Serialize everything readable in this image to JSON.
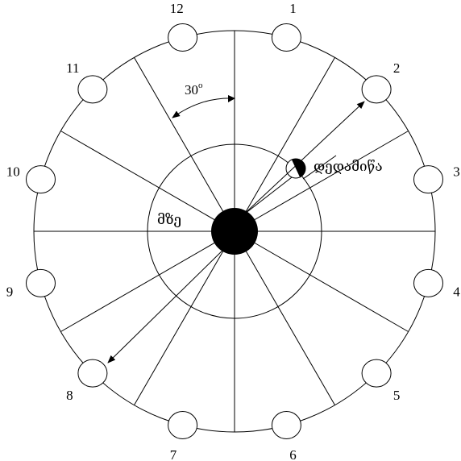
{
  "diagram": {
    "sun_label": "მზე",
    "earth_label": "დედამიწა",
    "angle_label": "30",
    "angle_degree_symbol": "o",
    "positions": [
      "1",
      "2",
      "3",
      "4",
      "5",
      "6",
      "7",
      "8",
      "9",
      "10",
      "11",
      "12"
    ],
    "sector_count": 12,
    "colors": {
      "stroke": "#000000",
      "fill": "#000000",
      "background": "#ffffff"
    }
  }
}
